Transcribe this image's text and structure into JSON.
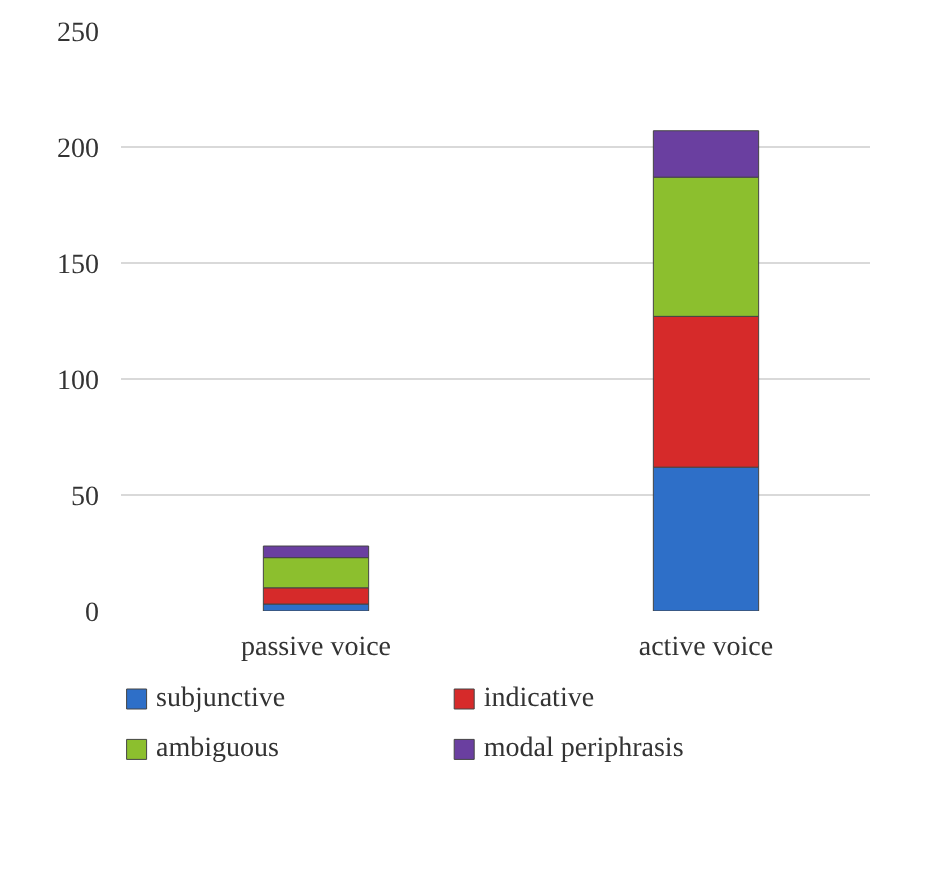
{
  "chart_data": {
    "type": "bar",
    "stacked": true,
    "categories": [
      "passive voice",
      "active voice"
    ],
    "series": [
      {
        "name": "subjunctive",
        "color": "#2e6fc8",
        "values": [
          3,
          62
        ]
      },
      {
        "name": "indicative",
        "color": "#d62a2a",
        "values": [
          7,
          65
        ]
      },
      {
        "name": "ambiguous",
        "color": "#8cbf2e",
        "values": [
          13,
          60
        ]
      },
      {
        "name": "modal periphrasis",
        "color": "#6a3fa0",
        "values": [
          5,
          20
        ]
      }
    ],
    "ylim": [
      0,
      250
    ],
    "yticks": [
      0,
      50,
      100,
      150,
      200,
      250
    ],
    "grid": "y",
    "legend": "bottom"
  }
}
